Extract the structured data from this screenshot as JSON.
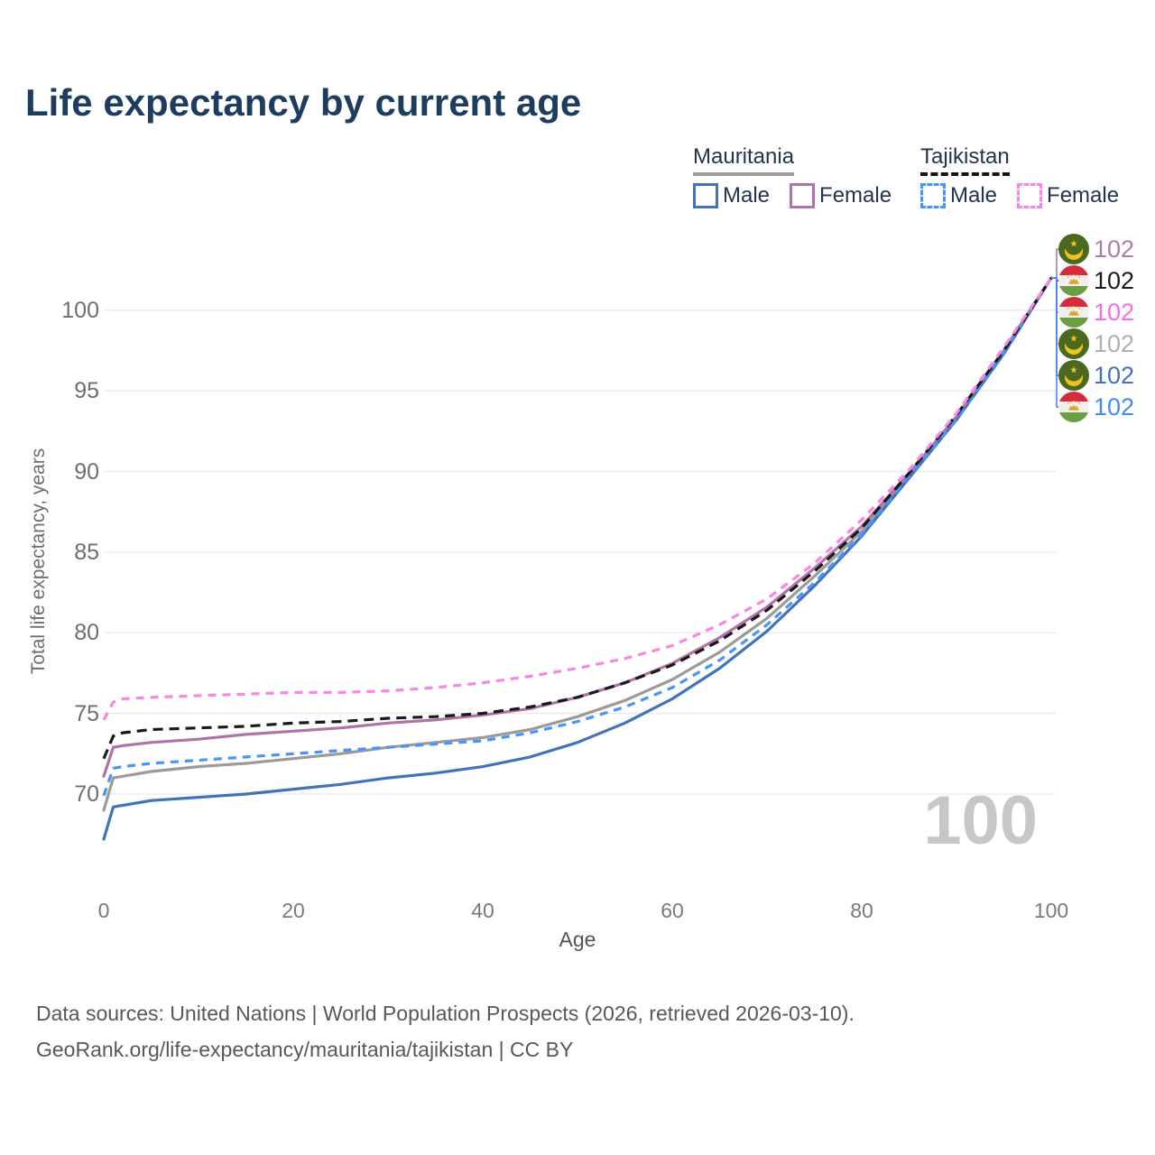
{
  "page": {
    "title": "Life expectancy by current age"
  },
  "legend": {
    "position": "top-right",
    "groups": [
      {
        "name": "Mauritania",
        "line_style": "solid",
        "underline_color": "#9e9ea2",
        "items": [
          {
            "label": "Male",
            "color": "#4273b8",
            "dashed": false,
            "series": "mauritania-male"
          },
          {
            "label": "Female",
            "color": "#b073a8",
            "dashed": false,
            "series": "mauritania-female"
          }
        ]
      },
      {
        "name": "Tajikistan",
        "line_style": "dashed",
        "underline_color": "#151515",
        "items": [
          {
            "label": "Male",
            "color": "#4695fb",
            "dashed": true,
            "series": "tajikistan-male"
          },
          {
            "label": "Female",
            "color": "#fb84e4",
            "dashed": true,
            "series": "tajikistan-female"
          }
        ]
      }
    ]
  },
  "watermark": "100",
  "footer": {
    "line1": "Data sources: United Nations | World Population Prospects (2026, retrieved 2026-03-10).",
    "line2": "GeoRank.org/life-expectancy/mauritania/tajikistan | CC BY"
  },
  "chart_data": {
    "type": "line",
    "title": "Life expectancy by current age",
    "xlabel": "Age",
    "ylabel": "Total life expectancy, years",
    "xlim": [
      0,
      100
    ],
    "ylim": [
      66,
      103
    ],
    "x_ticks": [
      0,
      20,
      40,
      60,
      80,
      100
    ],
    "y_ticks": [
      100,
      95,
      90,
      85,
      80,
      75,
      70
    ],
    "grid": "horizontal",
    "gridline_color": "#e8e8ea",
    "ages": [
      0,
      1,
      2,
      5,
      10,
      15,
      20,
      25,
      30,
      35,
      40,
      45,
      50,
      55,
      60,
      65,
      70,
      75,
      80,
      85,
      90,
      95,
      100
    ],
    "series": [
      {
        "id": "mauritania-both",
        "country": "Mauritania",
        "sex": "Both",
        "color": "#9b9b9b",
        "dashed": false,
        "values": [
          69.0,
          71.0,
          71.1,
          71.4,
          71.7,
          71.9,
          72.2,
          72.5,
          72.9,
          73.2,
          73.5,
          74.0,
          74.8,
          75.8,
          77.1,
          78.8,
          80.9,
          83.5,
          86.3,
          89.8,
          93.3,
          97.4,
          102
        ]
      },
      {
        "id": "mauritania-male",
        "country": "Mauritania",
        "sex": "Male",
        "color": "#4273b8",
        "dashed": false,
        "values": [
          67.2,
          69.2,
          69.3,
          69.6,
          69.8,
          70.0,
          70.3,
          70.6,
          71.0,
          71.3,
          71.7,
          72.3,
          73.2,
          74.4,
          75.9,
          77.8,
          80.1,
          82.9,
          86.0,
          89.6,
          93.2,
          97.3,
          102
        ]
      },
      {
        "id": "mauritania-female",
        "country": "Mauritania",
        "sex": "Female",
        "color": "#b073a8",
        "dashed": false,
        "values": [
          71.1,
          72.9,
          73.0,
          73.2,
          73.4,
          73.7,
          73.9,
          74.1,
          74.4,
          74.6,
          74.9,
          75.3,
          76.0,
          76.9,
          78.1,
          79.7,
          81.6,
          84.0,
          86.6,
          89.9,
          93.4,
          97.5,
          102
        ]
      },
      {
        "id": "tajikistan-male",
        "country": "Tajikistan",
        "sex": "Male",
        "color": "#4695fb",
        "dashed": true,
        "values": [
          69.9,
          71.6,
          71.7,
          71.9,
          72.1,
          72.3,
          72.5,
          72.7,
          72.9,
          73.1,
          73.3,
          73.8,
          74.5,
          75.4,
          76.6,
          78.3,
          80.5,
          83.1,
          86.1,
          89.7,
          93.2,
          97.4,
          102
        ]
      },
      {
        "id": "tajikistan-both",
        "country": "Tajikistan",
        "sex": "Both",
        "color": "#191919",
        "dashed": true,
        "values": [
          72.2,
          73.6,
          73.8,
          74.0,
          74.1,
          74.2,
          74.4,
          74.5,
          74.7,
          74.8,
          75.0,
          75.4,
          76.0,
          76.9,
          78.0,
          79.5,
          81.4,
          83.8,
          86.5,
          89.9,
          93.5,
          97.5,
          102
        ]
      },
      {
        "id": "tajikistan-female",
        "country": "Tajikistan",
        "sex": "Female",
        "color": "#fb84e4",
        "dashed": true,
        "values": [
          74.6,
          75.7,
          75.9,
          76.0,
          76.1,
          76.2,
          76.3,
          76.3,
          76.4,
          76.6,
          76.9,
          77.3,
          77.8,
          78.4,
          79.2,
          80.5,
          82.1,
          84.3,
          87.0,
          90.1,
          93.6,
          97.7,
          102
        ]
      }
    ],
    "end_labels": [
      {
        "series": "mauritania-female",
        "value": "102",
        "color": "#a87cb0",
        "flag": "mauritania"
      },
      {
        "series": "tajikistan-both",
        "value": "102",
        "color": "#1c1c1c",
        "flag": "tajikistan"
      },
      {
        "series": "tajikistan-female",
        "value": "102",
        "color": "#fb6ce0",
        "flag": "tajikistan"
      },
      {
        "series": "mauritania-both",
        "value": "102",
        "color": "#b0b0b0",
        "flag": "mauritania"
      },
      {
        "series": "mauritania-male",
        "value": "102",
        "color": "#4273b8",
        "flag": "mauritania"
      },
      {
        "series": "tajikistan-male",
        "value": "102",
        "color": "#3f8bfa",
        "flag": "tajikistan"
      }
    ],
    "flag_colors": {
      "mauritania": {
        "field": "#4a691f",
        "emblem": "#efc51c"
      },
      "tajikistan": {
        "top": "#d62b3c",
        "middle": "#f1eeec",
        "bottom": "#6a9e42",
        "emblem": "#d7a52b"
      }
    }
  }
}
